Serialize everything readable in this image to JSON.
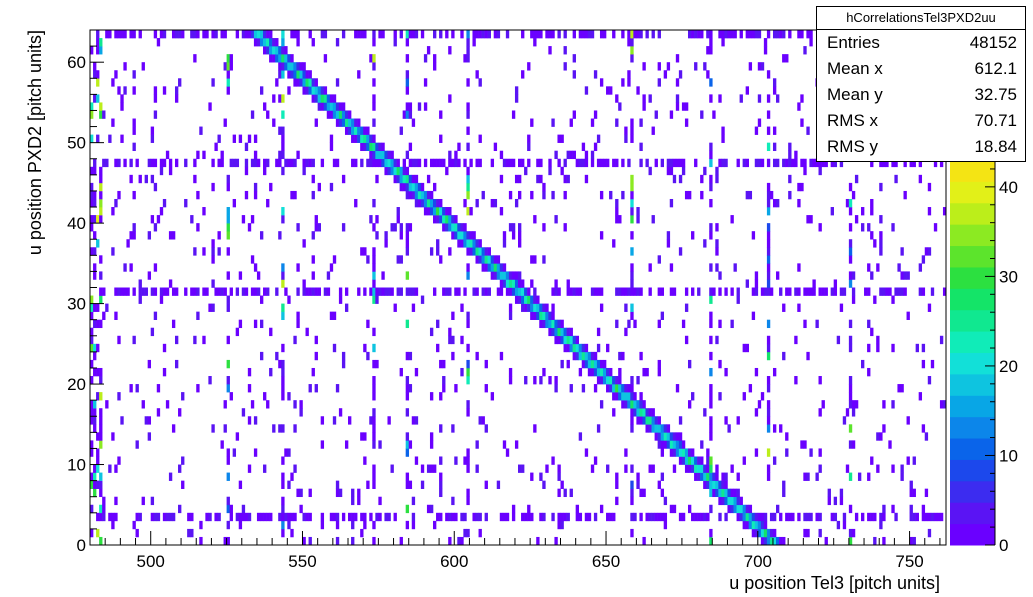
{
  "chart_data": {
    "type": "heatmap",
    "title": "",
    "xlabel": "u position Tel3 [pitch units]",
    "ylabel": "u position PXD2 [pitch units]",
    "xlim": [
      480,
      762
    ],
    "ylim": [
      0,
      64
    ],
    "x_ticks": [
      "500",
      "550",
      "600",
      "650",
      "700",
      "750"
    ],
    "y_ticks": [
      "0",
      "10",
      "20",
      "30",
      "40",
      "50",
      "60"
    ],
    "z_ticks": [
      "0",
      "10",
      "20",
      "30",
      "40"
    ],
    "zlim": [
      0,
      43
    ],
    "diagonal_band": {
      "x_at_y0": 706,
      "x_at_y64": 534,
      "peak_counts": 25
    },
    "noisy_rows_y": [
      3,
      31,
      47,
      63
    ],
    "noisy_columns_x": [
      525,
      543,
      573,
      584,
      604,
      658,
      684,
      703,
      730
    ],
    "stats": {
      "name": "hCorrelationsTel3PXD2uu",
      "rows": [
        {
          "label": "Entries",
          "value": "48152"
        },
        {
          "label": "Mean x",
          "value": "612.1"
        },
        {
          "label": "Mean y",
          "value": "32.75"
        },
        {
          "label": "RMS x",
          "value": "70.71"
        },
        {
          "label": "RMS y",
          "value": "18.84"
        }
      ]
    },
    "palette": [
      "#6a00ff",
      "#5a14f4",
      "#3c2cf0",
      "#1c48ec",
      "#0a64ea",
      "#0c86ea",
      "#08a6e6",
      "#0ec4e0",
      "#12e0d8",
      "#10ecb8",
      "#10e890",
      "#14e468",
      "#2ce040",
      "#5ce42c",
      "#8cea22",
      "#bcee1a",
      "#e2f018",
      "#f4e414"
    ]
  }
}
